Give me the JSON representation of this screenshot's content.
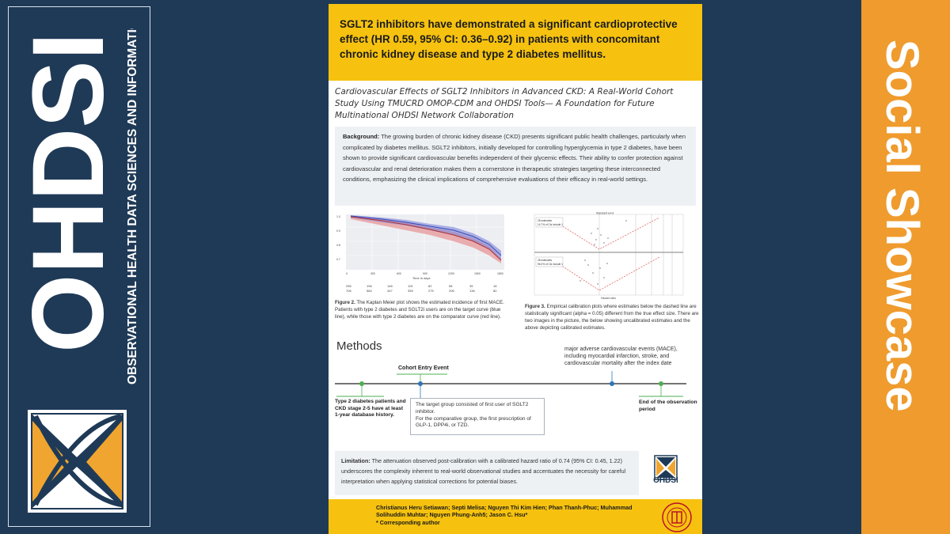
{
  "left_banner": {
    "brand": "OHDSI",
    "tagline": "OBSERVATIONAL HEALTH DATA SCIENCES AND INFORMATICS",
    "logo_icon": "ohdsi-x-logo-icon"
  },
  "right_banner": {
    "label": "Social Showcase"
  },
  "poster": {
    "headline": "SGLT2 inhibitors have demonstrated a significant cardioprotective effect (HR 0.59, 95% CI: 0.36–0.92) in patients with concomitant chronic kidney disease and type 2 diabetes mellitus.",
    "title": "Cardiovascular Effects of SGLT2 Inhibitors in Advanced CKD: A Real-World Cohort Study Using TMUCRD OMOP-CDM and OHDSI Tools— A Foundation for Future Multinational OHDSI Network Collaboration",
    "background_label": "Background:",
    "background_text": "The growing burden of chronic kidney disease (CKD) presents significant public health challenges, particularly when complicated by diabetes mellitus. SGLT2 inhibitors, initially developed for controlling hyperglycemia in type 2 diabetes, have been shown to provide significant cardiovascular benefits independent of their glycemic effects. Their ability to confer protection against cardiovascular and renal deterioration makes them a cornerstone in therapeutic strategies targeting these interconnected conditions, emphasizing the clinical implications of comprehensive evaluations of their efficacy in real-world settings.",
    "fig2_label": "Figure 2.",
    "fig2_caption": "The Kaplan Meier plot shows the estimated incidence of first MACE. Patients with type 2 diabetes and SGLT2i users are on the target curve (blue line), while those with type 2 diabetes are on the comparator curve (red line).",
    "fig3_label": "Figure 3.",
    "fig3_caption": "Empirical calibration plots where estimates below the dashed line are statistically significant (alpha = 0.05) different from the true effect size. There are two images in the picture, the below showing uncalibrated estimates and the above depicting calibrated estimates.",
    "km_xlabel": "Time in days",
    "km_ticks_x": [
      "0",
      "300",
      "600",
      "900",
      "1200",
      "1500",
      "1800"
    ],
    "km_ticks_y": [
      "1.0",
      "0.9",
      "0.8",
      "0.7"
    ],
    "km_risk_row1": [
      "256",
      "196",
      "148",
      "115",
      "82",
      "58",
      "35",
      "18"
    ],
    "km_risk_row2": [
      "706",
      "584",
      "447",
      "359",
      "275",
      "206",
      "136",
      "80"
    ],
    "cal_top_title": "Standard error",
    "cal_box1_a": "28 estimates",
    "cal_box1_b": "14.7% of CIs include 1",
    "cal_box2_a": "28 estimates",
    "cal_box2_b": "96.0% of CIs include 1",
    "cal_xlabel": "Hazard ratio",
    "methods_heading": "Methods",
    "mace_text": "major adverse cardiovascular events (MACE), including myocardial infarction, stroke, and cardiovascular mortality after the index date",
    "cohort_entry": "Cohort Entry Event",
    "t2d_text": "Type 2 diabetes patients and CKD stage 2-5 have at least 1-year database history.",
    "target_text_1": "The target group consisted of first user of SGLT2 inhibitor.",
    "target_text_2": "For the comparative group, the first prescription of GLP-1, DPP4i, or TZD.",
    "end_obs": "End of the observation period",
    "limitation_label": "Limitation:",
    "limitation_text": "The attenuation observed post-calibration with a calibrated hazard ratio of 0.74 (95% CI: 0.45, 1.22) underscores the complexity inherent to real-world observational studies and accentuates the necessity for careful interpretation when applying statistical corrections for potential biases.",
    "small_logo_text": "OHDSI",
    "authors": "Christianus Heru Setiawan; Septi Melisa; Nguyen Thi Kim Hien; Phan Thanh-Phuc; Muhammad Solihuddin Muhtar; Nguyen Phung-Anh5; Jason C. Hsu*",
    "corresponding": "* Corresponding author",
    "seal_icon": "university-seal-icon"
  },
  "colors": {
    "navy": "#1f3a57",
    "orange": "#ef9b2e",
    "yellow": "#f6c20f",
    "km_blue": "#5a6fd0",
    "km_red": "#e06060",
    "timeline_green": "#4caf50",
    "timeline_blue": "#2e75b6"
  }
}
